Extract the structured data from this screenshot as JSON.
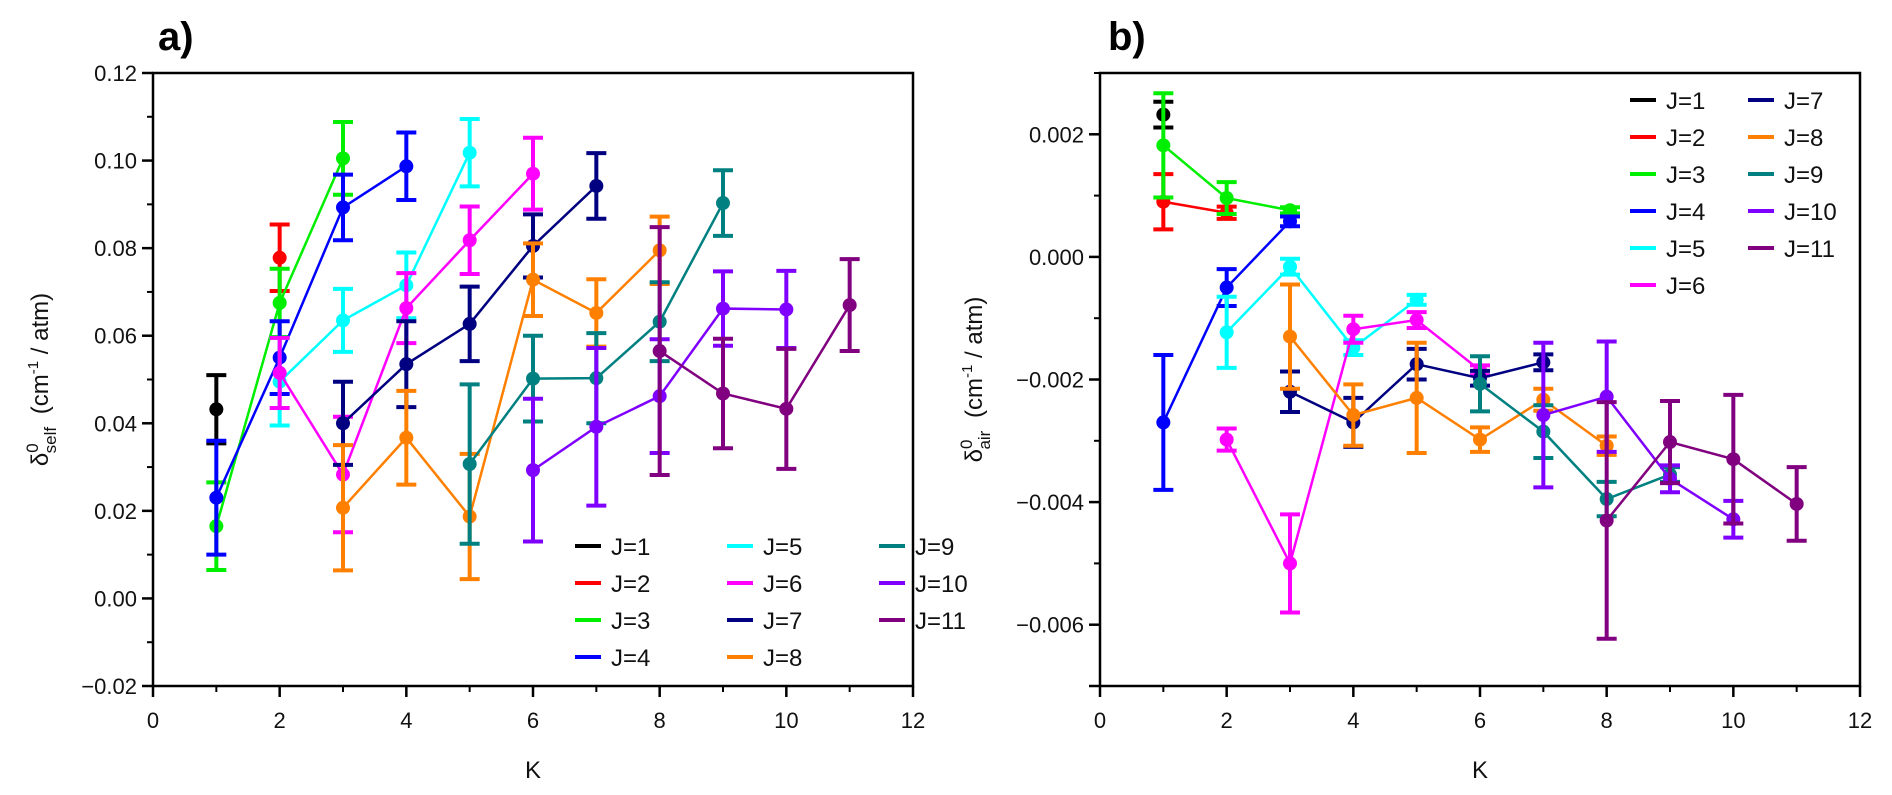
{
  "chart_data": [
    {
      "type": "line",
      "panel_label": "a)",
      "title": "",
      "xlabel": "K",
      "ylabel_symbol": "δ",
      "ylabel_sup": "0",
      "ylabel_sub": "self",
      "ylabel_unit": "(cm",
      "ylabel_unit_sup": "-1",
      "ylabel_unit_tail": " / atm)",
      "xlim": [
        0,
        12
      ],
      "ylim": [
        -0.02,
        0.12
      ],
      "xticks": [
        0,
        2,
        4,
        6,
        8,
        10,
        12
      ],
      "xtick_labels": [
        "0",
        "2",
        "4",
        "6",
        "8",
        "10",
        "12"
      ],
      "yticks": [
        -0.02,
        0.0,
        0.02,
        0.04,
        0.06,
        0.08,
        0.1,
        0.12
      ],
      "ytick_labels": [
        "−0.02",
        "0.00",
        "0.02",
        "0.04",
        "0.06",
        "0.08",
        "0.10",
        "0.12"
      ],
      "grid": false,
      "legend_position": "bottom-right",
      "legend_columns": 3,
      "series": [
        {
          "name": "J=1",
          "color": "#000000",
          "points": [
            {
              "x": 1,
              "y": 0.0432,
              "err": 0.0078
            }
          ]
        },
        {
          "name": "J=2",
          "color": "#ff0000",
          "points": [
            {
              "x": 2,
              "y": 0.0778,
              "err": 0.0076
            }
          ]
        },
        {
          "name": "J=3",
          "color": "#00ee00",
          "points": [
            {
              "x": 1,
              "y": 0.0165,
              "err": 0.01
            },
            {
              "x": 2,
              "y": 0.0675,
              "err": 0.0078
            },
            {
              "x": 3,
              "y": 0.1005,
              "err": 0.0083
            }
          ]
        },
        {
          "name": "J=4",
          "color": "#0000ff",
          "points": [
            {
              "x": 1,
              "y": 0.023,
              "err": 0.013
            },
            {
              "x": 2,
              "y": 0.055,
              "err": 0.0083
            },
            {
              "x": 3,
              "y": 0.0893,
              "err": 0.0075
            },
            {
              "x": 4,
              "y": 0.0987,
              "err": 0.0077
            }
          ]
        },
        {
          "name": "J=5",
          "color": "#00ffff",
          "points": [
            {
              "x": 2,
              "y": 0.0495,
              "err": 0.01
            },
            {
              "x": 3,
              "y": 0.0635,
              "err": 0.0072
            },
            {
              "x": 4,
              "y": 0.0715,
              "err": 0.0075
            },
            {
              "x": 5,
              "y": 0.1018,
              "err": 0.0077
            }
          ]
        },
        {
          "name": "J=6",
          "color": "#ff00ff",
          "points": [
            {
              "x": 2,
              "y": 0.0515,
              "err": 0.008
            },
            {
              "x": 3,
              "y": 0.0283,
              "err": 0.0132
            },
            {
              "x": 4,
              "y": 0.0663,
              "err": 0.008
            },
            {
              "x": 5,
              "y": 0.0818,
              "err": 0.0077
            },
            {
              "x": 6,
              "y": 0.097,
              "err": 0.0082
            }
          ]
        },
        {
          "name": "J=7",
          "color": "#000080",
          "points": [
            {
              "x": 3,
              "y": 0.04,
              "err": 0.0095
            },
            {
              "x": 4,
              "y": 0.0535,
              "err": 0.0098
            },
            {
              "x": 5,
              "y": 0.0627,
              "err": 0.0085
            },
            {
              "x": 6,
              "y": 0.0805,
              "err": 0.0072
            },
            {
              "x": 7,
              "y": 0.0942,
              "err": 0.0075
            }
          ]
        },
        {
          "name": "J=8",
          "color": "#ff8000",
          "points": [
            {
              "x": 3,
              "y": 0.0207,
              "err": 0.0143
            },
            {
              "x": 4,
              "y": 0.0367,
              "err": 0.0107
            },
            {
              "x": 5,
              "y": 0.0187,
              "err": 0.0143
            },
            {
              "x": 6,
              "y": 0.0728,
              "err": 0.0083
            },
            {
              "x": 7,
              "y": 0.0652,
              "err": 0.0077
            },
            {
              "x": 8,
              "y": 0.0795,
              "err": 0.0077
            }
          ]
        },
        {
          "name": "J=9",
          "color": "#008080",
          "points": [
            {
              "x": 5,
              "y": 0.0307,
              "err": 0.0182
            },
            {
              "x": 6,
              "y": 0.0502,
              "err": 0.0098
            },
            {
              "x": 7,
              "y": 0.0503,
              "err": 0.0103
            },
            {
              "x": 8,
              "y": 0.0632,
              "err": 0.009
            },
            {
              "x": 9,
              "y": 0.0903,
              "err": 0.0075
            }
          ]
        },
        {
          "name": "J=10",
          "color": "#8000ff",
          "points": [
            {
              "x": 6,
              "y": 0.0293,
              "err": 0.0163
            },
            {
              "x": 7,
              "y": 0.0392,
              "err": 0.018
            },
            {
              "x": 8,
              "y": 0.0462,
              "err": 0.013
            },
            {
              "x": 9,
              "y": 0.0662,
              "err": 0.0085
            },
            {
              "x": 10,
              "y": 0.066,
              "err": 0.0088
            }
          ]
        },
        {
          "name": "J=11",
          "color": "#800080",
          "points": [
            {
              "x": 8,
              "y": 0.0565,
              "err": 0.0283
            },
            {
              "x": 9,
              "y": 0.0468,
              "err": 0.0125
            },
            {
              "x": 10,
              "y": 0.0433,
              "err": 0.0137
            },
            {
              "x": 11,
              "y": 0.067,
              "err": 0.0105
            }
          ]
        }
      ]
    },
    {
      "type": "line",
      "panel_label": "b)",
      "title": "",
      "xlabel": "K",
      "ylabel_symbol": "δ",
      "ylabel_sup": "0",
      "ylabel_sub": "air",
      "ylabel_unit": "(cm",
      "ylabel_unit_sup": "-1",
      "ylabel_unit_tail": " / atm)",
      "xlim": [
        0,
        12
      ],
      "ylim": [
        -0.007,
        0.003
      ],
      "xticks": [
        0,
        2,
        4,
        6,
        8,
        10,
        12
      ],
      "xtick_labels": [
        "0",
        "2",
        "4",
        "6",
        "8",
        "10",
        "12"
      ],
      "yticks": [
        -0.006,
        -0.004,
        -0.002,
        0.0,
        0.002
      ],
      "ytick_labels": [
        "−0.006",
        "−0.004",
        "−0.002",
        "0.000",
        "0.002"
      ],
      "grid": false,
      "legend_position": "top-right",
      "legend_columns": 2,
      "series": [
        {
          "name": "J=1",
          "color": "#000000",
          "points": [
            {
              "x": 1,
              "y": 0.00232,
              "err": 0.00021
            }
          ]
        },
        {
          "name": "J=2",
          "color": "#ff0000",
          "points": [
            {
              "x": 1,
              "y": 0.0009,
              "err": 0.00045
            },
            {
              "x": 2,
              "y": 0.00072,
              "err": 0.0001
            }
          ]
        },
        {
          "name": "J=3",
          "color": "#00ee00",
          "points": [
            {
              "x": 1,
              "y": 0.00182,
              "err": 0.00085
            },
            {
              "x": 2,
              "y": 0.00096,
              "err": 0.00026
            },
            {
              "x": 3,
              "y": 0.00076,
              "err": 5e-05
            }
          ]
        },
        {
          "name": "J=4",
          "color": "#0000ff",
          "points": [
            {
              "x": 1,
              "y": -0.0027,
              "err": 0.0011
            },
            {
              "x": 2,
              "y": -0.0005,
              "err": 0.0003
            },
            {
              "x": 3,
              "y": 0.00058,
              "err": 8e-05
            }
          ]
        },
        {
          "name": "J=5",
          "color": "#00ffff",
          "points": [
            {
              "x": 2,
              "y": -0.00123,
              "err": 0.00058
            },
            {
              "x": 3,
              "y": -0.00016,
              "err": 0.00013
            },
            {
              "x": 4,
              "y": -0.00148,
              "err": 0.00012
            },
            {
              "x": 5,
              "y": -0.0007,
              "err": 8e-05
            }
          ]
        },
        {
          "name": "J=6",
          "color": "#ff00ff",
          "points": [
            {
              "x": 2,
              "y": -0.00298,
              "err": 0.00018
            },
            {
              "x": 3,
              "y": -0.005,
              "err": 0.0008
            },
            {
              "x": 4,
              "y": -0.00118,
              "err": 0.00022
            },
            {
              "x": 5,
              "y": -0.00103,
              "err": 0.00013
            },
            {
              "x": 6,
              "y": -0.00185,
              "err": 8e-05
            }
          ]
        },
        {
          "name": "J=7",
          "color": "#000080",
          "points": [
            {
              "x": 3,
              "y": -0.0022,
              "err": 0.00033
            },
            {
              "x": 4,
              "y": -0.0027,
              "err": 0.0004
            },
            {
              "x": 5,
              "y": -0.00175,
              "err": 0.00025
            },
            {
              "x": 6,
              "y": -0.00198,
              "err": 0.00012
            },
            {
              "x": 7,
              "y": -0.00172,
              "err": 0.00013
            }
          ]
        },
        {
          "name": "J=8",
          "color": "#ff8000",
          "points": [
            {
              "x": 3,
              "y": -0.0013,
              "err": 0.00085
            },
            {
              "x": 4,
              "y": -0.00258,
              "err": 0.0005
            },
            {
              "x": 5,
              "y": -0.0023,
              "err": 0.0009
            },
            {
              "x": 6,
              "y": -0.00298,
              "err": 0.0002
            },
            {
              "x": 7,
              "y": -0.00233,
              "err": 0.00018
            },
            {
              "x": 8,
              "y": -0.00308,
              "err": 0.00015
            }
          ]
        },
        {
          "name": "J=9",
          "color": "#008080",
          "points": [
            {
              "x": 6,
              "y": -0.00207,
              "err": 0.00045
            },
            {
              "x": 7,
              "y": -0.00285,
              "err": 0.00043
            },
            {
              "x": 8,
              "y": -0.00395,
              "err": 0.00028
            },
            {
              "x": 9,
              "y": -0.00355,
              "err": 0.00012
            }
          ]
        },
        {
          "name": "J=10",
          "color": "#8000ff",
          "points": [
            {
              "x": 7,
              "y": -0.00258,
              "err": 0.00118
            },
            {
              "x": 8,
              "y": -0.00228,
              "err": 0.0009
            },
            {
              "x": 9,
              "y": -0.00362,
              "err": 0.00022
            },
            {
              "x": 10,
              "y": -0.00428,
              "err": 0.0003
            }
          ]
        },
        {
          "name": "J=11",
          "color": "#800080",
          "points": [
            {
              "x": 8,
              "y": -0.0043,
              "err": 0.00193
            },
            {
              "x": 9,
              "y": -0.00302,
              "err": 0.00067
            },
            {
              "x": 10,
              "y": -0.0033,
              "err": 0.00105
            },
            {
              "x": 11,
              "y": -0.00403,
              "err": 0.0006
            }
          ]
        }
      ]
    }
  ]
}
